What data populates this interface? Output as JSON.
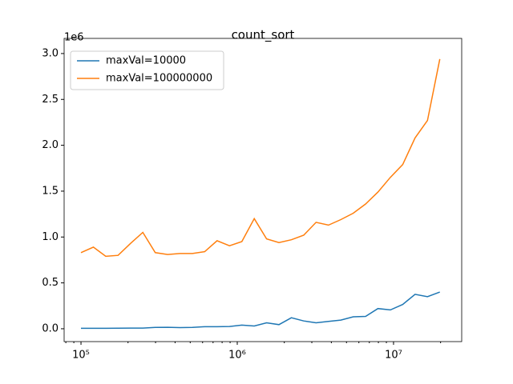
{
  "chart_data": {
    "type": "line",
    "title": "count_sort",
    "x": [
      100000,
      120000,
      144000,
      172800,
      207360,
      248832,
      298598,
      358318,
      429982,
      515978,
      619174,
      743008,
      891610,
      1069932,
      1283918,
      1540702,
      1848842,
      2218611,
      2662333,
      3194800,
      3833760,
      4600512,
      5520614,
      6624737,
      7949685,
      9539622,
      11447546,
      13737055,
      16484466,
      19781359
    ],
    "series": [
      {
        "name": "maxVal=10000",
        "color": "#1f77b4",
        "values": [
          5000,
          5000,
          5000,
          6000,
          7000,
          7000,
          15000,
          16000,
          13000,
          15000,
          22000,
          22000,
          25000,
          40000,
          30000,
          65000,
          45000,
          120000,
          85000,
          65000,
          80000,
          95000,
          130000,
          135000,
          220000,
          205000,
          265000,
          375000,
          350000,
          400000
        ]
      },
      {
        "name": "maxVal=100000000",
        "color": "#ff7f0e",
        "values": [
          830000,
          890000,
          790000,
          800000,
          930000,
          1050000,
          830000,
          810000,
          820000,
          820000,
          840000,
          960000,
          905000,
          950000,
          1200000,
          980000,
          940000,
          970000,
          1020000,
          1160000,
          1130000,
          1190000,
          1260000,
          1360000,
          1490000,
          1650000,
          1790000,
          2080000,
          2270000,
          2940000
        ]
      }
    ],
    "xscale": "log",
    "xlim": [
      78000,
      27300000
    ],
    "xticks": [
      {
        "value": 100000,
        "label": "10⁵"
      },
      {
        "value": 1000000,
        "label": "10⁶"
      },
      {
        "value": 10000000,
        "label": "10⁷"
      }
    ],
    "ylim": [
      -140000,
      3165000
    ],
    "yticks": [
      {
        "value": 0,
        "label": "0.0"
      },
      {
        "value": 500000,
        "label": "0.5"
      },
      {
        "value": 1000000,
        "label": "1.0"
      },
      {
        "value": 1500000,
        "label": "1.5"
      },
      {
        "value": 2000000,
        "label": "2.0"
      },
      {
        "value": 2500000,
        "label": "2.5"
      },
      {
        "value": 3000000,
        "label": "3.0"
      }
    ],
    "y_offset_label": "1e6",
    "legend": "upper left",
    "grid": false
  }
}
